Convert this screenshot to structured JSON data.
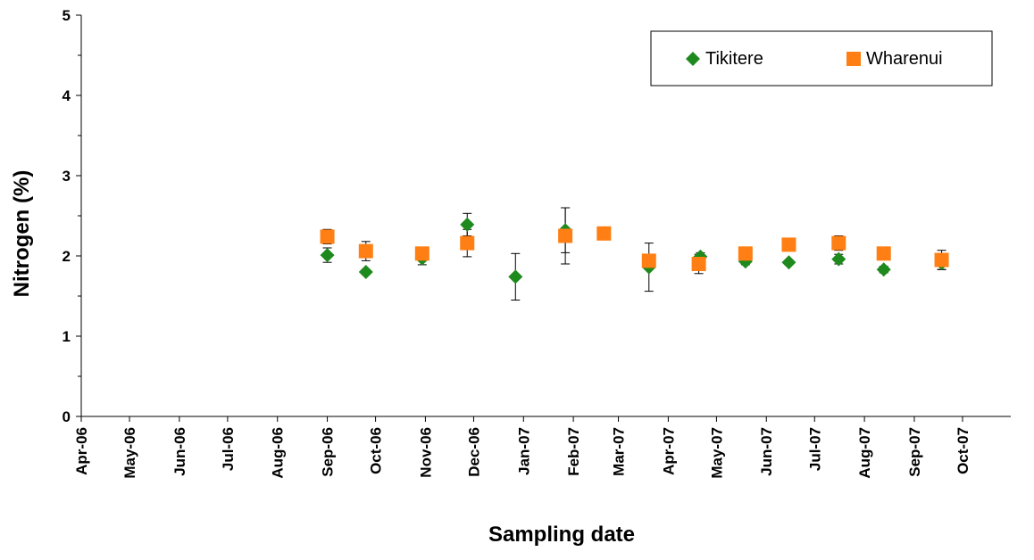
{
  "chart_data": {
    "type": "scatter",
    "title": "",
    "xlabel": "Sampling date",
    "ylabel": "Nitrogen (%)",
    "ylim": [
      0,
      5
    ],
    "y_ticks": [
      "0",
      "1",
      "2",
      "3",
      "4",
      "5"
    ],
    "xlim": [
      "2006-04-01",
      "2007-10-31"
    ],
    "x_ticks": [
      {
        "date": "2006-04-01",
        "label": "Apr-06"
      },
      {
        "date": "2006-05-01",
        "label": "May-06"
      },
      {
        "date": "2006-06-01",
        "label": "Jun-06"
      },
      {
        "date": "2006-07-01",
        "label": "Jul-06"
      },
      {
        "date": "2006-08-01",
        "label": "Aug-06"
      },
      {
        "date": "2006-09-01",
        "label": "Sep-06"
      },
      {
        "date": "2006-10-01",
        "label": "Oct-06"
      },
      {
        "date": "2006-11-01",
        "label": "Nov-06"
      },
      {
        "date": "2006-12-01",
        "label": "Dec-06"
      },
      {
        "date": "2007-01-01",
        "label": "Jan-07"
      },
      {
        "date": "2007-02-01",
        "label": "Feb-07"
      },
      {
        "date": "2007-03-01",
        "label": "Mar-07"
      },
      {
        "date": "2007-04-01",
        "label": "Apr-07"
      },
      {
        "date": "2007-05-01",
        "label": "May-07"
      },
      {
        "date": "2007-06-01",
        "label": "Jun-07"
      },
      {
        "date": "2007-07-01",
        "label": "Jul-07"
      },
      {
        "date": "2007-08-01",
        "label": "Aug-07"
      },
      {
        "date": "2007-09-01",
        "label": "Sep-07"
      },
      {
        "date": "2007-10-01",
        "label": "Oct-07"
      }
    ],
    "legend_position": "top-right",
    "grid": false,
    "series": [
      {
        "name": "Tikitere",
        "marker": "diamond",
        "color": "#1e8a1e",
        "points": [
          {
            "x": "2006-09-01",
            "y": 2.01,
            "err": 0.09
          },
          {
            "x": "2006-09-25",
            "y": 1.8,
            "err": 0.03
          },
          {
            "x": "2006-10-30",
            "y": 1.97,
            "err": 0.08
          },
          {
            "x": "2006-11-27",
            "y": 2.39,
            "err": 0.14
          },
          {
            "x": "2006-12-27",
            "y": 1.74,
            "err": 0.29
          },
          {
            "x": "2007-01-27",
            "y": 2.32,
            "err": 0.28
          },
          {
            "x": "2007-03-20",
            "y": 1.86,
            "err": 0.3
          },
          {
            "x": "2007-04-21",
            "y": 1.99,
            "err": 0.05
          },
          {
            "x": "2007-05-19",
            "y": 1.93,
            "err": 0.04
          },
          {
            "x": "2007-06-15",
            "y": 1.92,
            "err": 0.03
          },
          {
            "x": "2007-07-16",
            "y": 1.96,
            "err": 0.06
          },
          {
            "x": "2007-08-13",
            "y": 1.83,
            "err": 0.04
          },
          {
            "x": "2007-09-18",
            "y": 1.91,
            "err": 0.08
          }
        ]
      },
      {
        "name": "Wharenui",
        "marker": "square",
        "color": "#ff7f14",
        "points": [
          {
            "x": "2006-09-01",
            "y": 2.24,
            "err": 0.09
          },
          {
            "x": "2006-09-25",
            "y": 2.06,
            "err": 0.12
          },
          {
            "x": "2006-10-30",
            "y": 2.03,
            "err": 0.04
          },
          {
            "x": "2006-11-27",
            "y": 2.16,
            "err": 0.17
          },
          {
            "x": "2007-01-27",
            "y": 2.25,
            "err": 0.35
          },
          {
            "x": "2007-02-20",
            "y": 2.28,
            "err": 0.03
          },
          {
            "x": "2007-03-20",
            "y": 1.94,
            "err": 0.04
          },
          {
            "x": "2007-04-20",
            "y": 1.9,
            "err": 0.12
          },
          {
            "x": "2007-05-19",
            "y": 2.03,
            "err": 0.04
          },
          {
            "x": "2007-06-15",
            "y": 2.14,
            "err": 0.04
          },
          {
            "x": "2007-07-16",
            "y": 2.16,
            "err": 0.09
          },
          {
            "x": "2007-08-13",
            "y": 2.03,
            "err": 0.04
          },
          {
            "x": "2007-09-18",
            "y": 1.95,
            "err": 0.12
          }
        ]
      }
    ]
  }
}
